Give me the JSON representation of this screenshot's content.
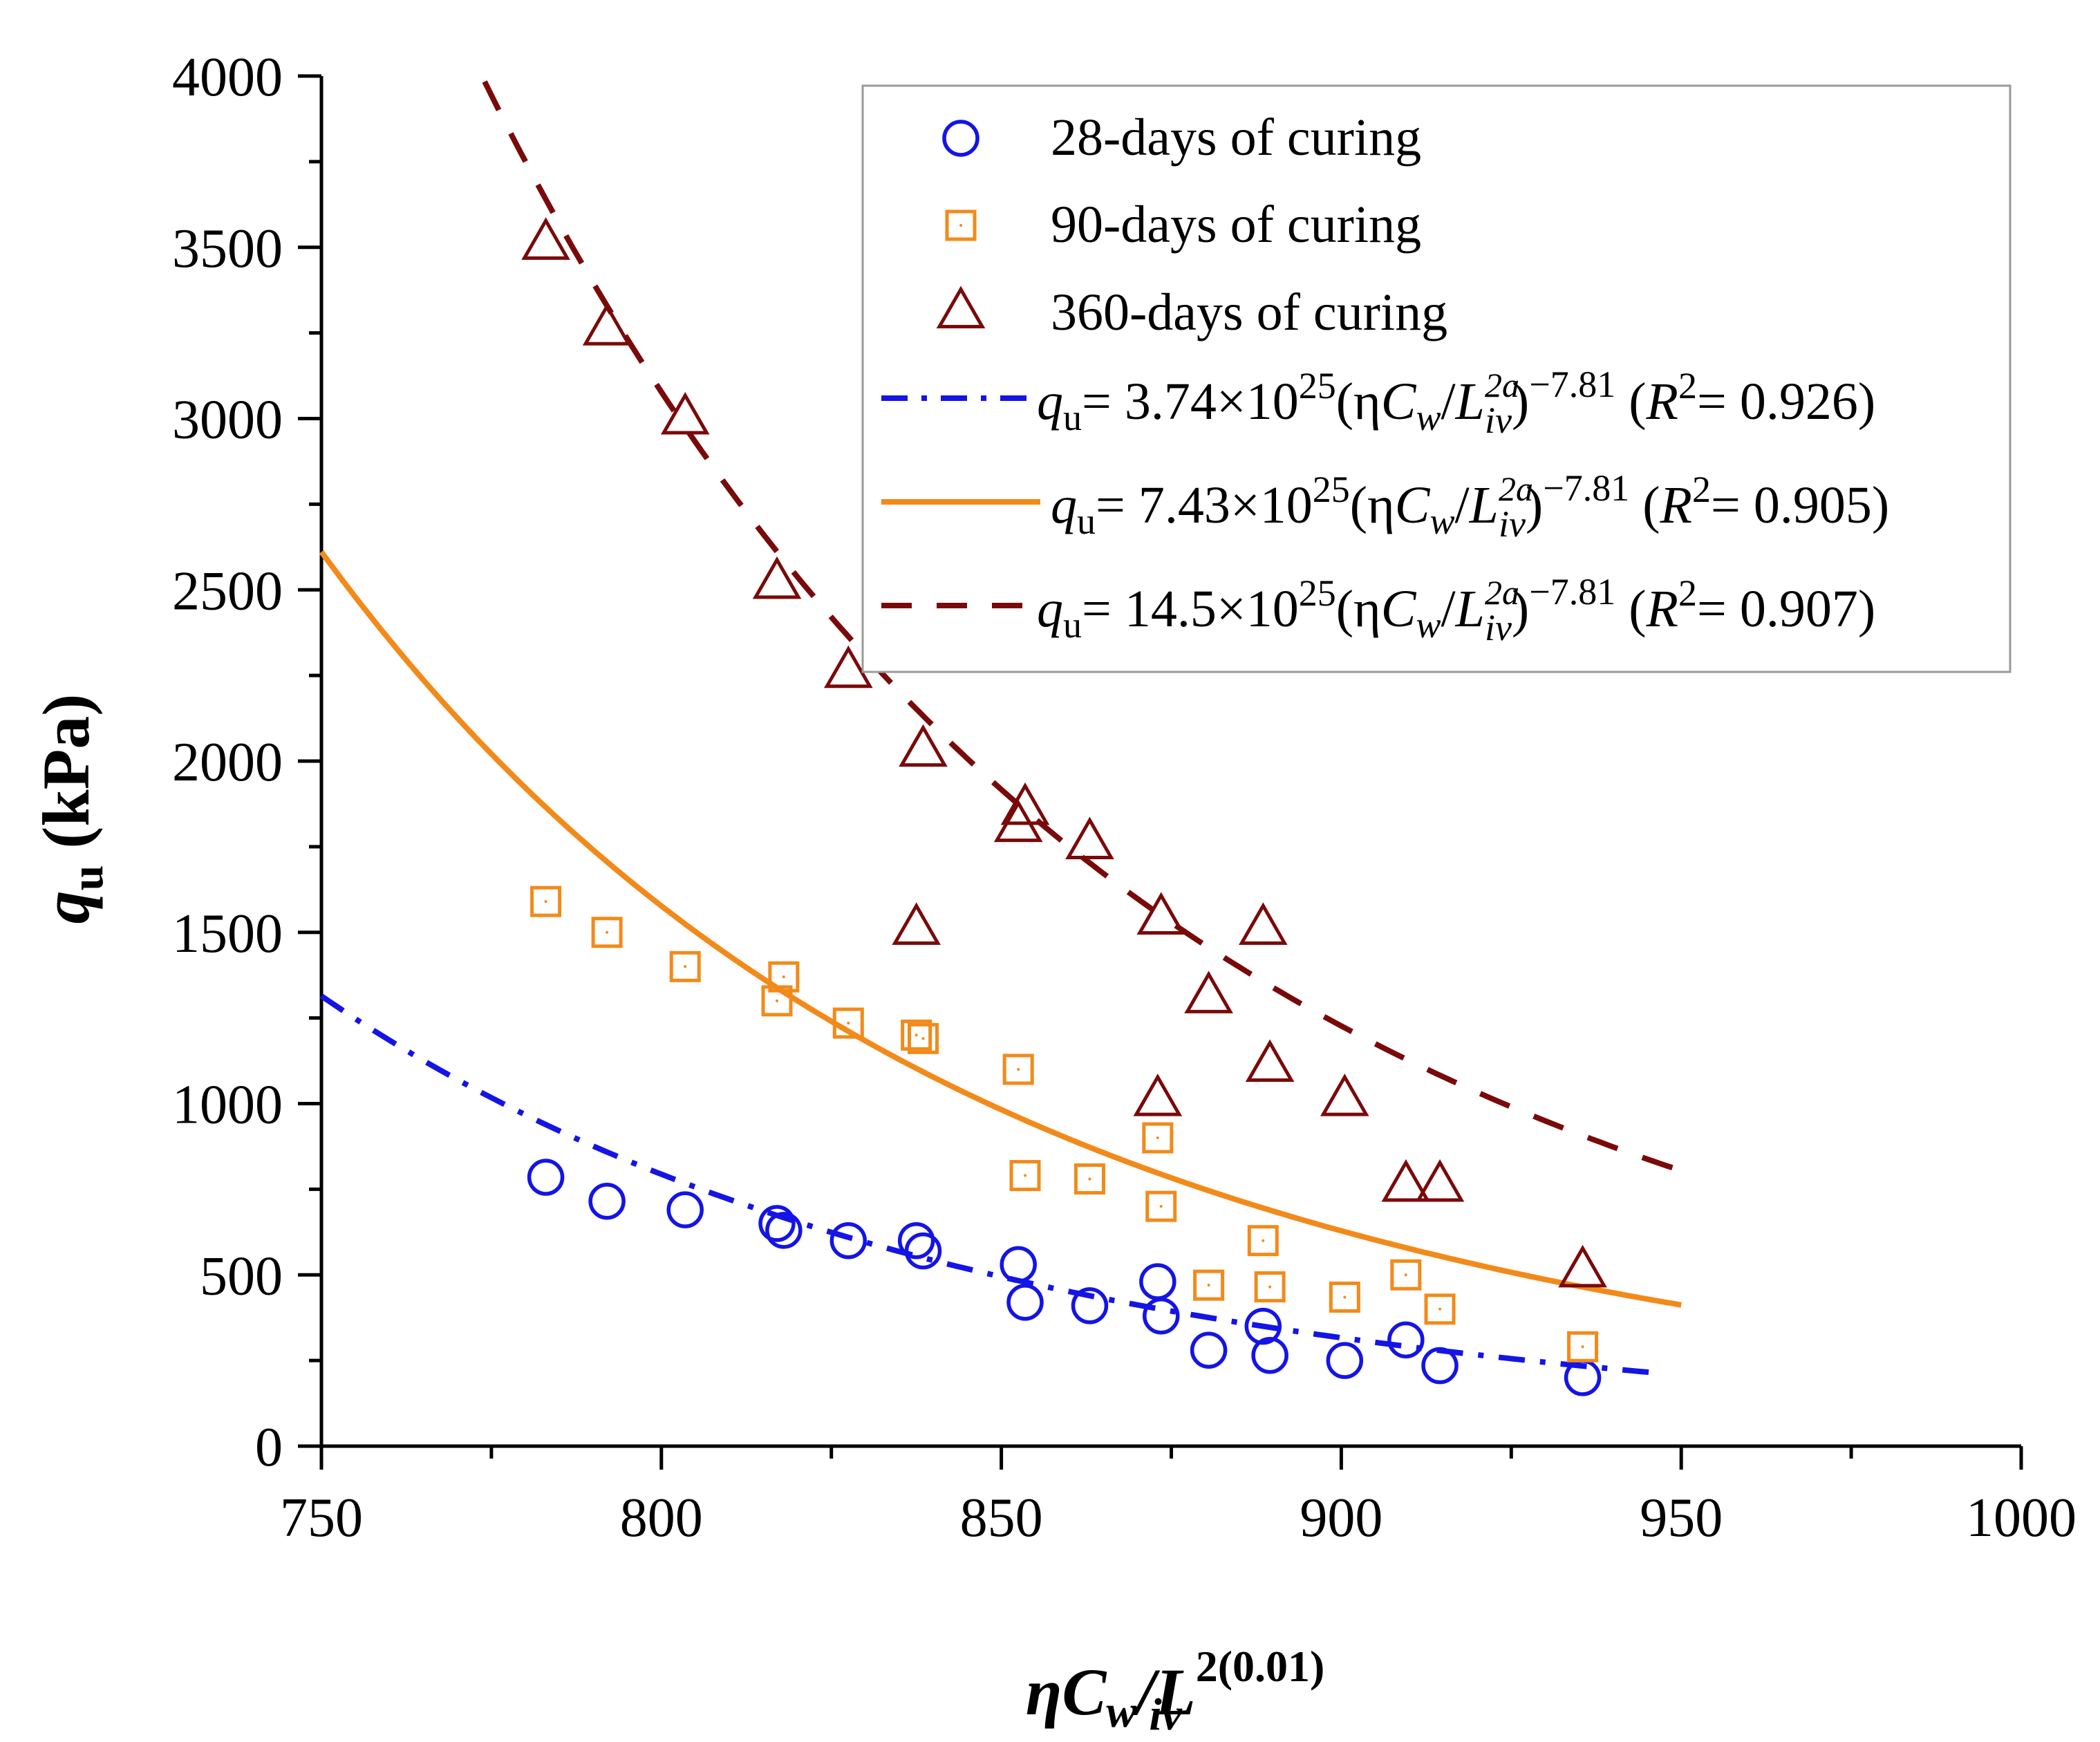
{
  "chart_data": {
    "type": "scatter",
    "xlabel": {
      "main": "ηC",
      "sub1": "w",
      "slash": "/",
      "letter": "L",
      "sup": "2(0.01)",
      "sub2": "iv"
    },
    "ylabel": {
      "main": "q",
      "sub": "u",
      "unit": "(kPa)"
    },
    "xlim": [
      750,
      1000
    ],
    "ylim": [
      0,
      4000
    ],
    "x_ticks": [
      750,
      800,
      850,
      900,
      950,
      1000
    ],
    "y_ticks": [
      0,
      500,
      1000,
      1500,
      2000,
      2500,
      3000,
      3500,
      4000
    ],
    "series": [
      {
        "name": "28-days of curing",
        "marker": "circle",
        "color": "#1414e6",
        "points": [
          [
            783,
            785
          ],
          [
            792,
            715
          ],
          [
            803.5,
            690
          ],
          [
            817,
            650
          ],
          [
            818,
            630
          ],
          [
            827.5,
            600
          ],
          [
            837.5,
            600
          ],
          [
            838.5,
            570
          ],
          [
            852.5,
            530
          ],
          [
            853.5,
            420
          ],
          [
            863,
            410
          ],
          [
            873,
            480
          ],
          [
            873.5,
            380
          ],
          [
            880.5,
            280
          ],
          [
            888.5,
            350
          ],
          [
            889.5,
            265
          ],
          [
            900.5,
            250
          ],
          [
            909.5,
            310
          ],
          [
            914.5,
            235
          ],
          [
            935.5,
            200
          ]
        ]
      },
      {
        "name": "90-days of curing",
        "marker": "square",
        "color": "#f28a1a",
        "points": [
          [
            783,
            1590
          ],
          [
            792,
            1500
          ],
          [
            803.5,
            1400
          ],
          [
            817,
            1300
          ],
          [
            818,
            1370
          ],
          [
            827.5,
            1235
          ],
          [
            837.5,
            1200
          ],
          [
            838.5,
            1190
          ],
          [
            852.5,
            1100
          ],
          [
            853.5,
            790
          ],
          [
            863,
            780
          ],
          [
            873,
            900
          ],
          [
            873.5,
            700
          ],
          [
            880.5,
            470
          ],
          [
            888.5,
            600
          ],
          [
            889.5,
            465
          ],
          [
            900.5,
            435
          ],
          [
            909.5,
            500
          ],
          [
            914.5,
            400
          ],
          [
            935.5,
            290
          ]
        ]
      },
      {
        "name": "360-days of curing",
        "marker": "triangle",
        "color": "#7a0a0a",
        "points": [
          [
            783,
            3510
          ],
          [
            792,
            3260
          ],
          [
            803.5,
            3000
          ],
          [
            817,
            2520
          ],
          [
            827.5,
            2260
          ],
          [
            837.5,
            1510
          ],
          [
            838.5,
            2030
          ],
          [
            852.5,
            1810
          ],
          [
            853.5,
            1860
          ],
          [
            863,
            1760
          ],
          [
            873,
            1010
          ],
          [
            873.5,
            1540
          ],
          [
            880.5,
            1310
          ],
          [
            888.5,
            1510
          ],
          [
            889.5,
            1110
          ],
          [
            900.5,
            1010
          ],
          [
            909.5,
            760
          ],
          [
            914.5,
            760
          ],
          [
            935.5,
            510
          ]
        ]
      }
    ],
    "fits": [
      {
        "label_pre": "= 3.74×10",
        "exp": "25",
        "r2": "= 0.926)",
        "coef": 3.74e+25,
        "power": -7.81,
        "x_range": [
          750,
          947
        ],
        "style": "dash-dot",
        "color": "#1414e6"
      },
      {
        "label_pre": "= 7.43×10",
        "exp": "25",
        "r2": "= 0.905)",
        "coef": 7.43e+25,
        "power": -7.81,
        "x_range": [
          750,
          950
        ],
        "style": "solid",
        "color": "#f28a1a"
      },
      {
        "label_pre": "= 14.5×10",
        "exp": "25",
        "r2": "= 0.907)",
        "coef": 1.45e+26,
        "power": -7.81,
        "x_range": [
          750,
          950
        ],
        "style": "dashed",
        "color": "#7a0a0a"
      }
    ],
    "fit_label_parts": {
      "q": "q",
      "u": "u",
      "paren_eta": "(η",
      "C": "C",
      "w": "w",
      "slash": "/",
      "L": "L",
      "sup2a": "2a",
      "subiv": "iv",
      "close": ")",
      "pow": "−7.81",
      "r2_open": " (",
      "R": "R",
      "R_sup": "2"
    },
    "legend_position": "top-right"
  }
}
